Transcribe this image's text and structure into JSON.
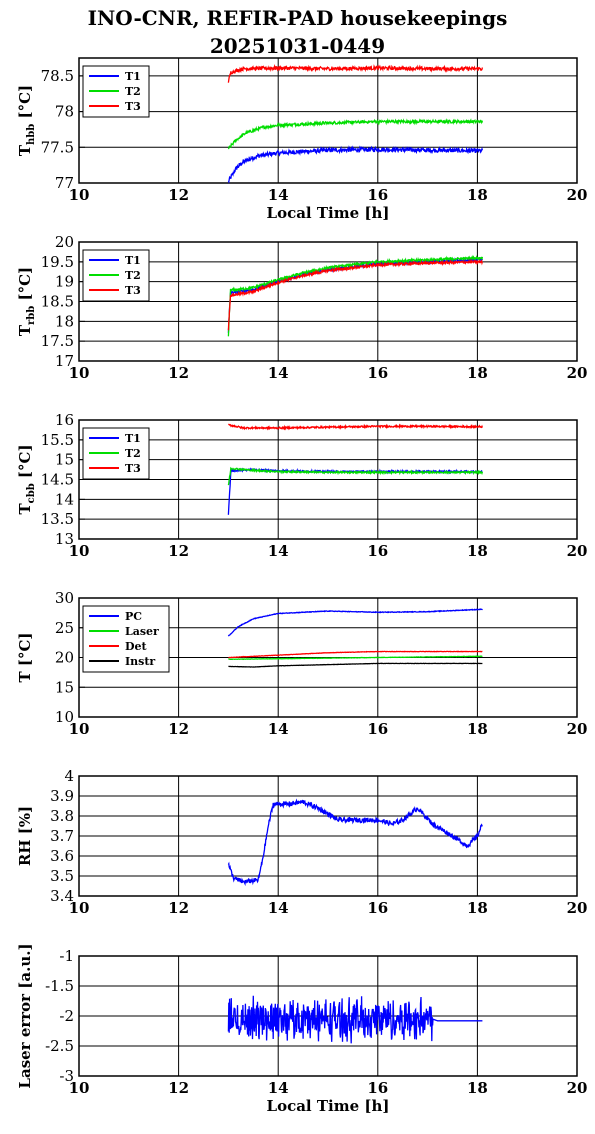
{
  "header": {
    "title_line1": "INO-CNR, REFIR-PAD housekeepings",
    "title_line2": "20251031-0449"
  },
  "chart_data": [
    {
      "type": "line",
      "ylabel_main": "T",
      "ylabel_sub": "hbb",
      "ylabel_unit": " [°C]",
      "xlabel": "Local Time [h]",
      "xlim": [
        10,
        20
      ],
      "ylim": [
        77,
        78.75
      ],
      "xticks": [
        "10",
        "12",
        "14",
        "16",
        "18",
        "20"
      ],
      "yticks": [
        {
          "v": 77,
          "label": "77"
        },
        {
          "v": 77.5,
          "label": "77.5"
        },
        {
          "v": 78,
          "label": "78"
        },
        {
          "v": 78.5,
          "label": "78.5"
        }
      ],
      "grid": true,
      "legend_position": "top-left",
      "series": [
        {
          "name": "T1",
          "color": "#0000ff",
          "noise": 0.03,
          "points": [
            [
              13.0,
              77.02
            ],
            [
              13.15,
              77.2
            ],
            [
              13.3,
              77.3
            ],
            [
              13.6,
              77.38
            ],
            [
              14.0,
              77.42
            ],
            [
              15.0,
              77.46
            ],
            [
              16.0,
              77.47
            ],
            [
              17.0,
              77.46
            ],
            [
              18.1,
              77.45
            ]
          ]
        },
        {
          "name": "T2",
          "color": "#00dd00",
          "noise": 0.02,
          "points": [
            [
              13.0,
              77.48
            ],
            [
              13.15,
              77.6
            ],
            [
              13.35,
              77.7
            ],
            [
              13.7,
              77.78
            ],
            [
              14.0,
              77.81
            ],
            [
              15.0,
              77.84
            ],
            [
              16.0,
              77.86
            ],
            [
              17.0,
              77.86
            ],
            [
              18.1,
              77.86
            ]
          ]
        },
        {
          "name": "T3",
          "color": "#ff0000",
          "noise": 0.025,
          "points": [
            [
              13.0,
              78.42
            ],
            [
              13.05,
              78.55
            ],
            [
              13.3,
              78.6
            ],
            [
              14.0,
              78.61
            ],
            [
              15.0,
              78.6
            ],
            [
              16.0,
              78.61
            ],
            [
              17.0,
              78.6
            ],
            [
              18.1,
              78.6
            ]
          ]
        }
      ]
    },
    {
      "type": "line",
      "ylabel_main": "T",
      "ylabel_sub": "rbb",
      "ylabel_unit": " [°C]",
      "xlabel": "",
      "xlim": [
        10,
        20
      ],
      "ylim": [
        17,
        20
      ],
      "xticks": [
        "10",
        "12",
        "14",
        "16",
        "18",
        "20"
      ],
      "yticks": [
        {
          "v": 17,
          "label": "17"
        },
        {
          "v": 17.5,
          "label": "17.5"
        },
        {
          "v": 18,
          "label": "18"
        },
        {
          "v": 18.5,
          "label": "18.5"
        },
        {
          "v": 19,
          "label": "19"
        },
        {
          "v": 19.5,
          "label": "19.5"
        },
        {
          "v": 20,
          "label": "20"
        }
      ],
      "grid": true,
      "legend_position": "top-left",
      "series": [
        {
          "name": "T1",
          "color": "#0000ff",
          "noise": 0.03,
          "points": [
            [
              13.0,
              17.7
            ],
            [
              13.04,
              18.72
            ],
            [
              13.5,
              18.8
            ],
            [
              14.0,
              19.0
            ],
            [
              14.5,
              19.18
            ],
            [
              15.0,
              19.3
            ],
            [
              16.0,
              19.45
            ],
            [
              17.0,
              19.5
            ],
            [
              18.1,
              19.55
            ]
          ]
        },
        {
          "name": "T2",
          "color": "#00dd00",
          "noise": 0.03,
          "points": [
            [
              13.0,
              17.6
            ],
            [
              13.04,
              18.78
            ],
            [
              13.5,
              18.85
            ],
            [
              14.0,
              19.05
            ],
            [
              14.5,
              19.22
            ],
            [
              15.0,
              19.35
            ],
            [
              16.0,
              19.5
            ],
            [
              17.0,
              19.55
            ],
            [
              18.1,
              19.6
            ]
          ]
        },
        {
          "name": "T3",
          "color": "#ff0000",
          "noise": 0.03,
          "points": [
            [
              13.0,
              17.8
            ],
            [
              13.04,
              18.65
            ],
            [
              13.5,
              18.75
            ],
            [
              14.0,
              18.98
            ],
            [
              14.5,
              19.15
            ],
            [
              15.0,
              19.28
            ],
            [
              16.0,
              19.42
            ],
            [
              17.0,
              19.47
            ],
            [
              18.1,
              19.5
            ]
          ]
        }
      ]
    },
    {
      "type": "line",
      "ylabel_main": "T",
      "ylabel_sub": "cbb",
      "ylabel_unit": " [°C]",
      "xlabel": "",
      "xlim": [
        10,
        20
      ],
      "ylim": [
        13,
        16
      ],
      "xticks": [
        "10",
        "12",
        "14",
        "16",
        "18",
        "20"
      ],
      "yticks": [
        {
          "v": 13,
          "label": "13"
        },
        {
          "v": 13.5,
          "label": "13.5"
        },
        {
          "v": 14,
          "label": "14"
        },
        {
          "v": 14.5,
          "label": "14.5"
        },
        {
          "v": 15,
          "label": "15"
        },
        {
          "v": 15.5,
          "label": "15.5"
        },
        {
          "v": 16,
          "label": "16"
        }
      ],
      "grid": true,
      "legend_position": "top-left",
      "series": [
        {
          "name": "T1",
          "color": "#0000ff",
          "noise": 0.02,
          "points": [
            [
              13.0,
              13.62
            ],
            [
              13.05,
              14.72
            ],
            [
              13.5,
              14.75
            ],
            [
              14.0,
              14.72
            ],
            [
              15.0,
              14.7
            ],
            [
              16.0,
              14.7
            ],
            [
              17.0,
              14.7
            ],
            [
              18.1,
              14.7
            ]
          ]
        },
        {
          "name": "T2",
          "color": "#00dd00",
          "noise": 0.02,
          "points": [
            [
              13.0,
              14.35
            ],
            [
              13.05,
              14.78
            ],
            [
              13.5,
              14.73
            ],
            [
              14.0,
              14.7
            ],
            [
              15.0,
              14.68
            ],
            [
              16.0,
              14.68
            ],
            [
              17.0,
              14.68
            ],
            [
              18.1,
              14.68
            ]
          ]
        },
        {
          "name": "T3",
          "color": "#ff0000",
          "noise": 0.02,
          "points": [
            [
              13.0,
              15.88
            ],
            [
              13.3,
              15.8
            ],
            [
              14.0,
              15.8
            ],
            [
              15.0,
              15.82
            ],
            [
              16.0,
              15.84
            ],
            [
              17.0,
              15.84
            ],
            [
              18.1,
              15.83
            ]
          ]
        }
      ]
    },
    {
      "type": "line",
      "ylabel_main": "T [°C]",
      "ylabel_sub": "",
      "ylabel_unit": "",
      "xlabel": "",
      "xlim": [
        10,
        20
      ],
      "ylim": [
        10,
        30
      ],
      "xticks": [
        "10",
        "12",
        "14",
        "16",
        "18",
        "20"
      ],
      "yticks": [
        {
          "v": 10,
          "label": "10"
        },
        {
          "v": 15,
          "label": "15"
        },
        {
          "v": 20,
          "label": "20"
        },
        {
          "v": 25,
          "label": "25"
        },
        {
          "v": 30,
          "label": "30"
        }
      ],
      "grid": true,
      "legend_position": "top-left",
      "series": [
        {
          "name": "PC",
          "color": "#0000ff",
          "noise": 0.05,
          "points": [
            [
              13.0,
              23.6
            ],
            [
              13.2,
              25.2
            ],
            [
              13.5,
              26.5
            ],
            [
              14.0,
              27.4
            ],
            [
              15.0,
              27.8
            ],
            [
              16.0,
              27.6
            ],
            [
              17.0,
              27.7
            ],
            [
              18.1,
              28.1
            ]
          ]
        },
        {
          "name": "Laser",
          "color": "#00dd00",
          "noise": 0.03,
          "points": [
            [
              13.0,
              19.7
            ],
            [
              14.0,
              19.8
            ],
            [
              15.0,
              19.9
            ],
            [
              16.0,
              20.0
            ],
            [
              17.0,
              20.1
            ],
            [
              18.1,
              20.2
            ]
          ]
        },
        {
          "name": "Det",
          "color": "#ff0000",
          "noise": 0.03,
          "points": [
            [
              13.0,
              20.0
            ],
            [
              14.0,
              20.4
            ],
            [
              15.0,
              20.8
            ],
            [
              16.0,
              21.0
            ],
            [
              17.0,
              21.0
            ],
            [
              18.1,
              21.0
            ]
          ]
        },
        {
          "name": "Instr",
          "color": "#000000",
          "noise": 0.02,
          "points": [
            [
              13.0,
              18.5
            ],
            [
              13.5,
              18.4
            ],
            [
              14.0,
              18.6
            ],
            [
              15.0,
              18.8
            ],
            [
              16.0,
              19.0
            ],
            [
              17.0,
              19.0
            ],
            [
              18.1,
              19.0
            ]
          ]
        }
      ]
    },
    {
      "type": "line",
      "ylabel_main": "RH [%]",
      "ylabel_sub": "",
      "ylabel_unit": "",
      "xlabel": "",
      "xlim": [
        10,
        20
      ],
      "ylim": [
        3.4,
        4.0
      ],
      "xticks": [
        "10",
        "12",
        "14",
        "16",
        "18",
        "20"
      ],
      "yticks": [
        {
          "v": 3.4,
          "label": "3.4"
        },
        {
          "v": 3.5,
          "label": "3.5"
        },
        {
          "v": 3.6,
          "label": "3.6"
        },
        {
          "v": 3.7,
          "label": "3.7"
        },
        {
          "v": 3.8,
          "label": "3.8"
        },
        {
          "v": 3.9,
          "label": "3.9"
        },
        {
          "v": 4.0,
          "label": "4"
        }
      ],
      "grid": true,
      "legend_position": "none",
      "series": [
        {
          "name": "",
          "color": "#0000ff",
          "noise": 0.012,
          "points": [
            [
              13.0,
              3.56
            ],
            [
              13.1,
              3.49
            ],
            [
              13.3,
              3.47
            ],
            [
              13.6,
              3.48
            ],
            [
              13.7,
              3.6
            ],
            [
              13.8,
              3.75
            ],
            [
              13.9,
              3.86
            ],
            [
              14.2,
              3.86
            ],
            [
              14.5,
              3.87
            ],
            [
              14.8,
              3.84
            ],
            [
              15.2,
              3.78
            ],
            [
              15.6,
              3.78
            ],
            [
              16.0,
              3.78
            ],
            [
              16.3,
              3.76
            ],
            [
              16.5,
              3.78
            ],
            [
              16.8,
              3.84
            ],
            [
              17.1,
              3.76
            ],
            [
              17.5,
              3.7
            ],
            [
              17.8,
              3.65
            ],
            [
              18.0,
              3.7
            ],
            [
              18.1,
              3.76
            ]
          ]
        }
      ]
    },
    {
      "type": "line",
      "ylabel_main": "Laser error [a.u.]",
      "ylabel_sub": "",
      "ylabel_unit": "",
      "xlabel": "Local Time [h]",
      "xlim": [
        10,
        20
      ],
      "ylim": [
        -3,
        -1
      ],
      "xticks": [
        "10",
        "12",
        "14",
        "16",
        "18",
        "20"
      ],
      "yticks": [
        {
          "v": -3,
          "label": "-3"
        },
        {
          "v": -2.5,
          "label": "-2.5"
        },
        {
          "v": -2,
          "label": "-2"
        },
        {
          "v": -1.5,
          "label": "-1.5"
        },
        {
          "v": -1,
          "label": "-1"
        }
      ],
      "grid": true,
      "legend_position": "none",
      "series": [
        {
          "name": "",
          "color": "#0000ff",
          "noise": 0.0,
          "oscillate": {
            "from": 13.0,
            "to": 17.1,
            "center": -2.05,
            "amp": 0.42
          },
          "points": [
            [
              13.0,
              -2.0
            ],
            [
              17.1,
              -2.05
            ],
            [
              17.2,
              -2.08
            ],
            [
              18.1,
              -2.08
            ]
          ]
        }
      ]
    }
  ]
}
